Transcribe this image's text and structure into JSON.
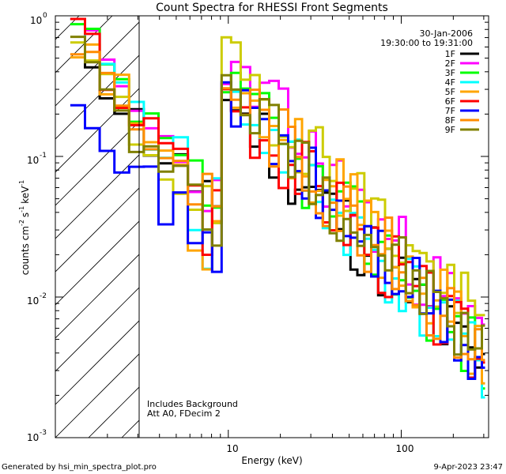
{
  "chart_data": {
    "type": "line",
    "title": "Count Spectra for RHESSI Front Segments",
    "xlabel": "Energy (keV)",
    "ylabel": "counts cm",
    "ylabel_units": [
      "-2",
      "s",
      "-1",
      "keV",
      "-1"
    ],
    "xscale": "log",
    "yscale": "log",
    "xlim": [
      1,
      320
    ],
    "ylim": [
      0.001,
      1
    ],
    "x_tick_labels": [
      {
        "value": 10,
        "label": "10"
      },
      {
        "value": 100,
        "label": "100"
      }
    ],
    "y_tick_labels": [
      {
        "value": 1,
        "base": "10",
        "exp": "0"
      },
      {
        "value": 0.1,
        "base": "10",
        "exp": "-1"
      },
      {
        "value": 0.01,
        "base": "10",
        "exp": "-2"
      },
      {
        "value": 0.001,
        "base": "10",
        "exp": "-3"
      }
    ],
    "date_label": "30-Jan-2006",
    "time_range_label": "19:30:00 to 19:31:00",
    "annotations": [
      "Includes Background",
      "Att A0, FDecim 2"
    ],
    "excluded_region_keV": [
      1,
      3
    ],
    "series": [
      {
        "name": "1F",
        "color": "#000000",
        "baseline": 0.72,
        "end": 0.0028,
        "lowmin": 0.0022,
        "seed": 11
      },
      {
        "name": "2F",
        "color": "#ff00ff",
        "baseline": 0.85,
        "end": 0.0048,
        "lowmin": 0.004,
        "seed": 23
      },
      {
        "name": "3F",
        "color": "#00ff00",
        "baseline": 0.78,
        "end": 0.0034,
        "lowmin": 0.003,
        "seed": 37
      },
      {
        "name": "4F",
        "color": "#00ffff",
        "baseline": 0.88,
        "end": 0.003,
        "lowmin": 0.0028,
        "seed": 41
      },
      {
        "name": "5F",
        "color": "#ffa500",
        "baseline": 0.75,
        "end": 0.004,
        "lowmin": 0.003,
        "seed": 53
      },
      {
        "name": "6F",
        "color": "#ff0000",
        "baseline": 0.8,
        "end": 0.0032,
        "lowmin": 0.0028,
        "seed": 67
      },
      {
        "name": "7F",
        "color": "#0000ff",
        "baseline": 0.33,
        "end": 0.003,
        "lowmin": 0.0012,
        "seed": 71
      },
      {
        "name": "8F",
        "color": "#ff8c00",
        "baseline": 0.74,
        "end": 0.0036,
        "lowmin": 0.0025,
        "seed": 83
      },
      {
        "name": "9F",
        "color": "#808000",
        "baseline": 0.56,
        "end": 0.0036,
        "lowmin": 0.0025,
        "seed": 97
      }
    ],
    "extra_series_yellow": {
      "name": "",
      "color": "#cccc00",
      "baseline": 0.6,
      "end": 0.0055,
      "lowmin": 0.0045,
      "seed": 19
    }
  },
  "footer": {
    "generator": "Generated by hsi_min_spectra_plot.pro",
    "timestamp": "9-Apr-2023 23:47"
  }
}
